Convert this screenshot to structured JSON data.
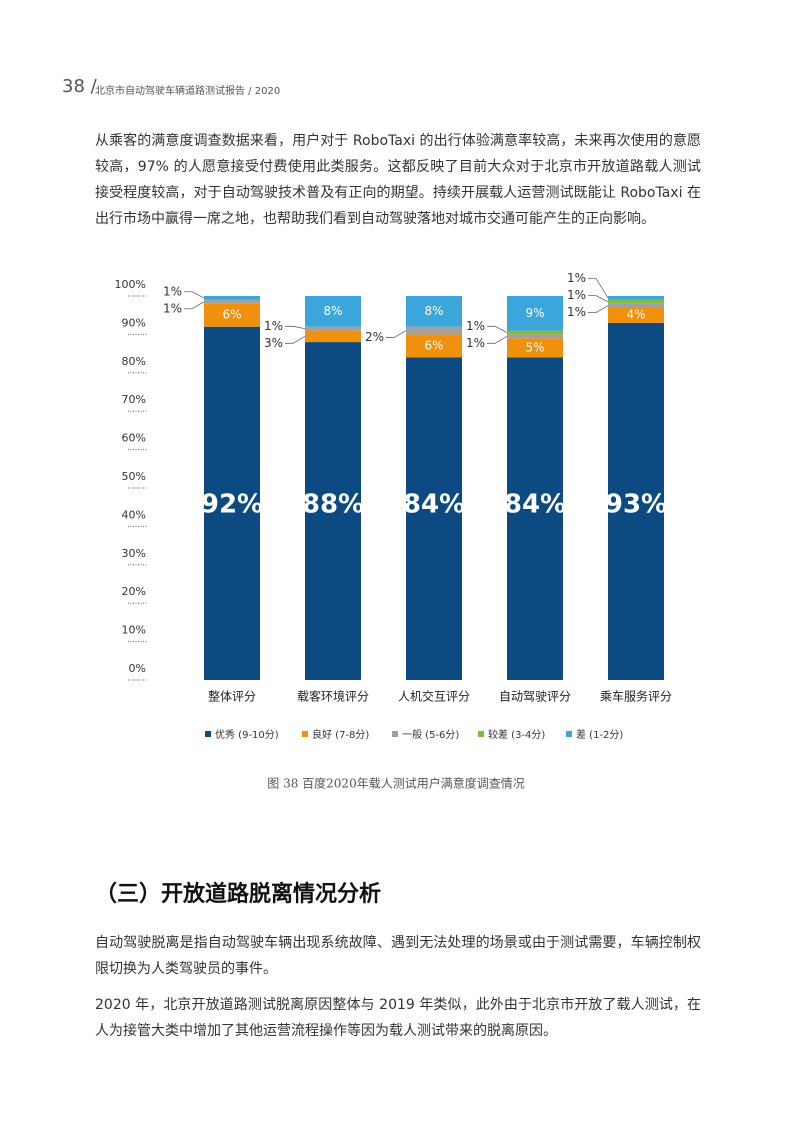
{
  "header": {
    "page_number": "38 /",
    "title": "北京市自动驾驶车辆道路测试报告 / 2020"
  },
  "intro": "从乘客的满意度调查数据来看，用户对于 RoboTaxi 的出行体验满意率较高，未来再次使用的意愿较高，97% 的人愿意接受付费使用此类服务。这都反映了目前大众对于北京市开放道路载人测试接受程度较高，对于自动驾驶技术普及有正向的期望。持续开展载人运营测试既能让 RoboTaxi 在出行市场中赢得一席之地，也帮助我们看到自动驾驶落地对城市交通可能产生的正向影响。",
  "chart_data": {
    "type": "stacked_bar",
    "title": "图 38 百度2020年载人测试用户满意度调查情况",
    "categories": [
      "整体评分",
      "载客环境评分",
      "人机交互评分",
      "自动驾驶评分",
      "乘车服务评分"
    ],
    "series": [
      {
        "name": "优秀 (9-10分)",
        "color": "#0d4a82",
        "values": [
          92,
          88,
          84,
          84,
          93
        ],
        "value_labels": [
          "92%",
          "88%",
          "84%",
          "84%",
          "93%"
        ]
      },
      {
        "name": "良好 (7-8分)",
        "color": "#f0900c",
        "values": [
          6,
          3,
          6,
          5,
          4
        ],
        "value_labels": [
          "6%",
          "3%",
          "6%",
          "5%",
          "4%"
        ]
      },
      {
        "name": "一般 (5-6分)",
        "color": "#a0a0a0",
        "values": [
          1,
          1,
          2,
          1,
          1
        ],
        "value_labels": [
          "1%",
          "1%",
          "2%",
          "1%",
          "1%"
        ]
      },
      {
        "name": "较差 (3-4分)",
        "color": "#7cbf3a",
        "values": [
          0,
          0,
          0,
          1,
          1
        ],
        "value_labels": [
          null,
          null,
          null,
          "1%",
          "1%"
        ]
      },
      {
        "name": "差 (1-2分)",
        "color": "#3aa6dc",
        "values": [
          1,
          8,
          8,
          9,
          1
        ],
        "value_labels": [
          "1%",
          "8%",
          "8%",
          "9%",
          "1%"
        ]
      }
    ],
    "ylim": [
      0,
      100
    ],
    "yticks": [
      {
        "value": 0,
        "label": "0%"
      },
      {
        "value": 10,
        "label": "10%"
      },
      {
        "value": 20,
        "label": "20%"
      },
      {
        "value": 30,
        "label": "30%"
      },
      {
        "value": 40,
        "label": "40%"
      },
      {
        "value": 50,
        "label": "50%"
      },
      {
        "value": 60,
        "label": "60%"
      },
      {
        "value": 70,
        "label": "70%"
      },
      {
        "value": 80,
        "label": "80%"
      },
      {
        "value": 90,
        "label": "90%"
      },
      {
        "value": 100,
        "label": "100%"
      }
    ],
    "legend": "bottom"
  },
  "section": {
    "heading": "（三）开放道路脱离情况分析",
    "paragraphs": [
      "自动驾驶脱离是指自动驾驶车辆出现系统故障、遇到无法处理的场景或由于测试需要，车辆控制权限切换为人类驾驶员的事件。",
      "2020 年，北京开放道路测试脱离原因整体与 2019 年类似，此外由于北京市开放了载人测试，在人为接管大类中增加了其他运营流程操作等因为载人测试带来的脱离原因。"
    ]
  }
}
